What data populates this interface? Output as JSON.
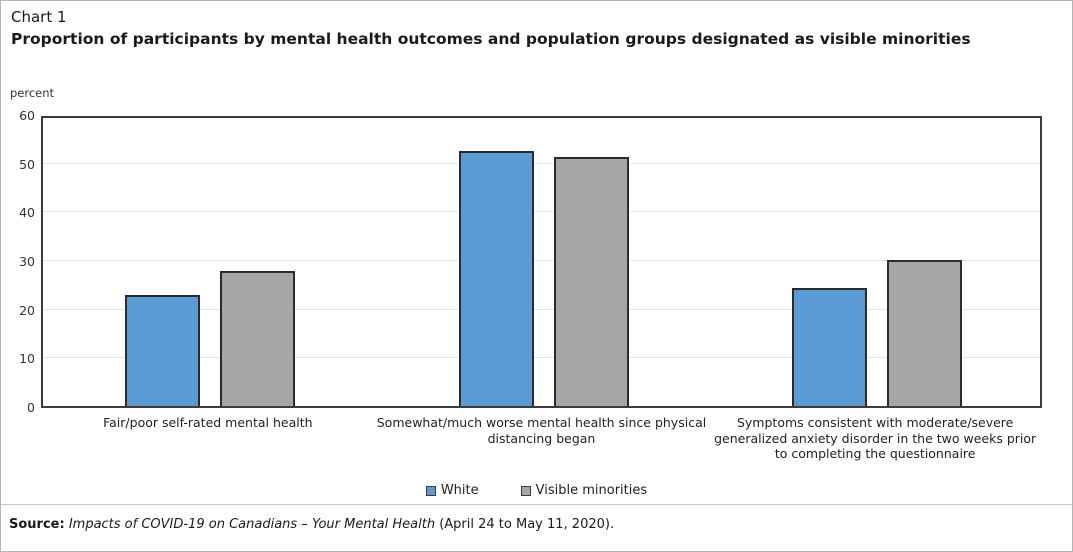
{
  "header": {
    "chart_label": "Chart 1",
    "title": "Proportion of participants by mental health outcomes and population groups designated as visible minorities",
    "unit_label": "percent"
  },
  "chart_data": {
    "type": "bar",
    "categories": [
      "Fair/poor self-rated mental health",
      "Somewhat/much worse mental health since physical distancing began",
      "Symptoms consistent with moderate/severe generalized anxiety disorder in the two weeks prior to completing the questionnaire"
    ],
    "series": [
      {
        "name": "White",
        "color": "#5b9bd5",
        "values": [
          22.9,
          52.3,
          24.2
        ]
      },
      {
        "name": "Visible minorities",
        "color": "#a6a6a6",
        "values": [
          27.8,
          51.2,
          30.0
        ]
      }
    ],
    "title": "Proportion of participants by mental health outcomes and population groups designated as visible minorities",
    "xlabel": "",
    "ylabel": "percent",
    "ylim": [
      0,
      60
    ],
    "yticks": [
      0,
      10,
      20,
      30,
      40,
      50,
      60
    ],
    "grid": true,
    "legend_position": "bottom"
  },
  "legend": {
    "items": [
      {
        "label": "White",
        "color": "#5b9bd5"
      },
      {
        "label": "Visible minorities",
        "color": "#a6a6a6"
      }
    ]
  },
  "source": {
    "prefix": "Source:",
    "italic_text": " Impacts of COVID-19 on Canadians – Your Mental Health",
    "suffix": " (April 24 to May 11, 2020)."
  }
}
